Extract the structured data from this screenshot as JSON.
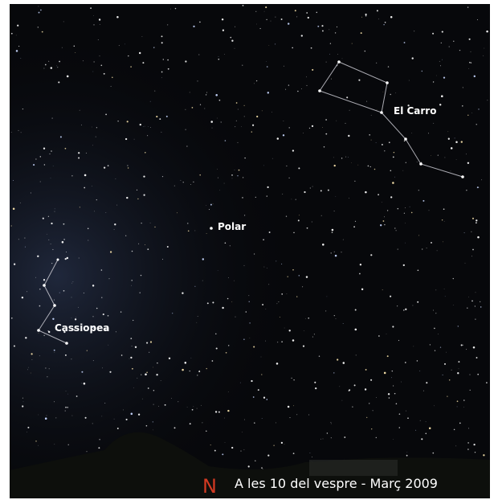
{
  "labels": {
    "el_carro": "El Carro",
    "polar": "Polar",
    "cassiopea": "Cassiopea"
  },
  "direction": "N",
  "caption": "A les 10 del vespre - Març 2009"
}
